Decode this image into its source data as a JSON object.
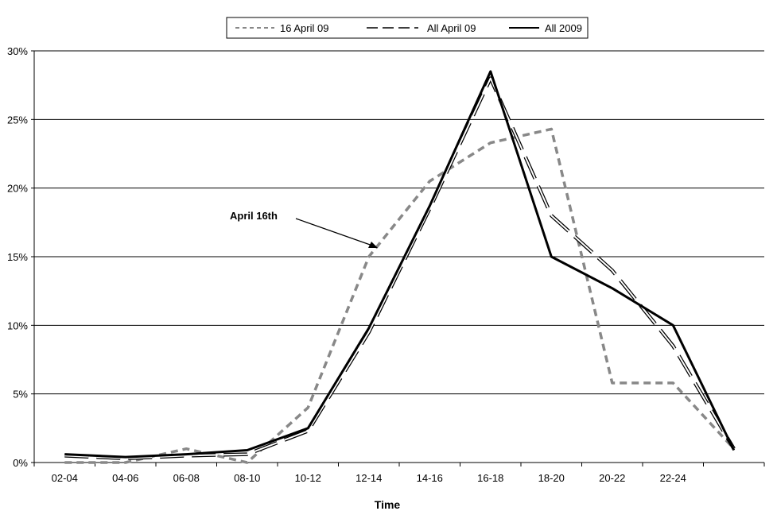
{
  "chart_data": {
    "type": "line",
    "xlabel": "Time",
    "ylabel": "",
    "ylim": [
      0,
      30
    ],
    "y_ticks": [
      0,
      5,
      10,
      15,
      20,
      25,
      30
    ],
    "y_tick_labels": [
      "0%",
      "5%",
      "10%",
      "15%",
      "20%",
      "25%",
      "30%"
    ],
    "grid": "horizontal",
    "legend_position": "top",
    "categories": [
      "02-04",
      "04-06",
      "06-08",
      "08-10",
      "10-12",
      "12-14",
      "14-16",
      "16-18",
      "18-20",
      "20-22",
      "22-24",
      ""
    ],
    "series": [
      {
        "name": "16 April 09",
        "style": "short-dash",
        "color": "#888888",
        "values": [
          0.0,
          0.0,
          1.0,
          0.0,
          4.0,
          15.0,
          20.5,
          23.3,
          24.3,
          5.8,
          5.8,
          1.0
        ]
      },
      {
        "name": "All April 09",
        "style": "long-dash",
        "color": "#000000",
        "values": [
          0.5,
          0.3,
          0.5,
          0.6,
          2.3,
          9.5,
          18.5,
          28.0,
          18.0,
          14.0,
          8.5,
          1.0
        ]
      },
      {
        "name": "All 2009",
        "style": "solid",
        "color": "#000000",
        "values": [
          0.6,
          0.4,
          0.6,
          0.9,
          2.5,
          9.8,
          18.7,
          28.5,
          15.0,
          12.7,
          10.0,
          0.9
        ]
      }
    ],
    "annotations": [
      {
        "text": "April 16th",
        "target_series": "16 April 09",
        "target_index": 5
      }
    ]
  }
}
